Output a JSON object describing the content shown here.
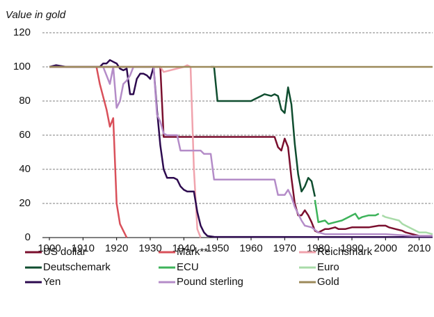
{
  "chart_data": {
    "type": "line",
    "title": "Value in gold",
    "xlim": [
      1900,
      2014
    ],
    "xticks": [
      1900,
      1910,
      1920,
      1930,
      1940,
      1950,
      1960,
      1970,
      1980,
      1990,
      2000,
      2010
    ],
    "ylim": [
      0,
      120
    ],
    "yticks": [
      0,
      20,
      40,
      60,
      80,
      100,
      120
    ],
    "grid": true,
    "series": [
      {
        "name": "US dollar",
        "color": "#7a0f2e",
        "x": [
          1900,
          1933,
          1934,
          1967,
          1968,
          1969,
          1970,
          1971,
          1972,
          1973,
          1974,
          1975,
          1976,
          1977,
          1978,
          1979,
          1980,
          1981,
          1982,
          1983,
          1985,
          1986,
          1988,
          1990,
          1995,
          1998,
          2000,
          2001,
          2003,
          2005,
          2006,
          2008,
          2010,
          2014
        ],
        "values": [
          100,
          100,
          59,
          59,
          53,
          51,
          58,
          53,
          35,
          20,
          13,
          13,
          16,
          13,
          9,
          4,
          3,
          4,
          5,
          5,
          6,
          5,
          5,
          6,
          6,
          7,
          7,
          6,
          5,
          4,
          3,
          2,
          1,
          1
        ]
      },
      {
        "name": "Mark**",
        "color": "#d9505a",
        "x": [
          1900,
          1914,
          1915,
          1917,
          1918,
          1919,
          1920,
          1921,
          1922,
          1923
        ],
        "values": [
          100,
          100,
          90,
          75,
          65,
          70,
          20,
          8,
          4,
          0
        ]
      },
      {
        "name": "Reichsmark",
        "color": "#f0a3ad",
        "x": [
          1924,
          1933,
          1934,
          1940,
          1941,
          1942,
          1943,
          1944,
          1945
        ],
        "values": [
          100,
          100,
          97,
          100,
          101,
          100,
          40,
          5,
          0
        ]
      },
      {
        "name": "Deutschemark",
        "color": "#0f4d2f",
        "x": [
          1948,
          1949,
          1950,
          1960,
          1961,
          1963,
          1964,
          1966,
          1967,
          1968,
          1969,
          1970,
          1971,
          1972,
          1973,
          1974,
          1975,
          1976,
          1977,
          1978,
          1979
        ],
        "values": [
          100,
          100,
          80,
          80,
          81,
          83,
          84,
          83,
          84,
          83,
          75,
          73,
          88,
          78,
          55,
          37,
          27,
          30,
          35,
          33,
          24
        ]
      },
      {
        "name": "ECU",
        "color": "#3db35a",
        "x": [
          1979,
          1980,
          1982,
          1983,
          1985,
          1987,
          1989,
          1990,
          1991,
          1992,
          1993,
          1995,
          1997,
          1998
        ],
        "values": [
          22,
          9,
          10,
          8,
          9,
          10,
          12,
          13,
          14,
          11,
          12,
          13,
          13,
          14
        ]
      },
      {
        "name": "Euro",
        "color": "#a8dba8",
        "x": [
          1999,
          2000,
          2002,
          2004,
          2005,
          2006,
          2008,
          2010,
          2012,
          2014
        ],
        "values": [
          13,
          12,
          11,
          10,
          8,
          7,
          5,
          3,
          3,
          2
        ]
      },
      {
        "name": "Yen",
        "color": "#2d0a4f",
        "x": [
          1900,
          1902,
          1905,
          1913,
          1915,
          1916,
          1917,
          1918,
          1919,
          1920,
          1921,
          1922,
          1923,
          1924,
          1925,
          1926,
          1927,
          1928,
          1929,
          1930,
          1931,
          1932,
          1933,
          1934,
          1935,
          1937,
          1938,
          1939,
          1940,
          1941,
          1943,
          1944,
          1945,
          1946,
          1947,
          1949,
          2014
        ],
        "values": [
          100,
          101,
          100,
          100,
          100,
          102,
          102,
          104,
          103,
          102,
          99,
          98,
          99,
          84,
          84,
          93,
          96,
          96,
          95,
          93,
          100,
          75,
          54,
          40,
          35,
          35,
          34,
          30,
          28,
          27,
          27,
          15,
          7,
          3,
          1,
          0.4,
          0.3
        ]
      },
      {
        "name": "Pound sterling",
        "color": "#b48cc8",
        "x": [
          1900,
          1914,
          1916,
          1917,
          1918,
          1919,
          1920,
          1921,
          1922,
          1923,
          1924,
          1925,
          1931,
          1932,
          1933,
          1934,
          1935,
          1938,
          1939,
          1945,
          1946,
          1948,
          1949,
          1967,
          1968,
          1970,
          1971,
          1972,
          1973,
          1975,
          1976,
          1978,
          1980,
          1982,
          1990,
          2000,
          2008,
          2014
        ],
        "values": [
          100,
          100,
          100,
          95,
          90,
          100,
          76,
          80,
          90,
          92,
          95,
          100,
          100,
          72,
          68,
          61,
          60,
          60,
          51,
          51,
          49,
          49,
          34,
          34,
          25,
          25,
          28,
          24,
          18,
          10,
          7,
          6,
          3,
          2,
          2,
          2,
          1,
          1
        ]
      },
      {
        "name": "Gold",
        "color": "#9c8a5a",
        "x": [
          1900,
          2014
        ],
        "values": [
          100,
          100
        ]
      }
    ]
  }
}
